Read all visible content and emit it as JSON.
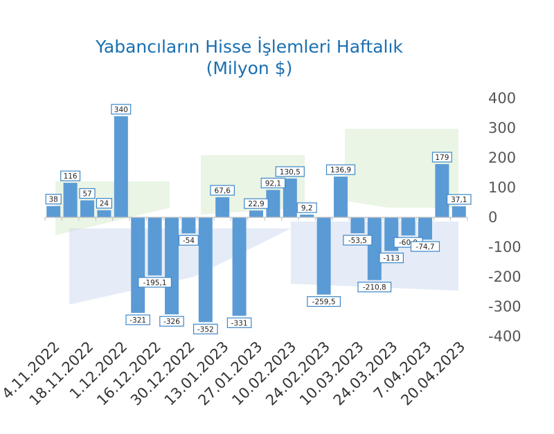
{
  "chart_data": {
    "type": "bar",
    "title_line1": "Yabancıların Hisse İşlemleri Haftalık",
    "title_line2": "(Milyon $)",
    "ylim": [
      -400,
      400
    ],
    "y_ticks": [
      "400",
      "300",
      "200",
      "100",
      "0",
      "-100",
      "-200",
      "-300",
      "-400"
    ],
    "y_tick_values": [
      400,
      300,
      200,
      100,
      0,
      -100,
      -200,
      -300,
      -400
    ],
    "x_tick_labels": [
      "4.11.2022",
      "18.11.2022",
      "1.12.2022",
      "16.12.2022",
      "30.12.2022",
      "13.01.2023",
      "27.01.2023",
      "10.02.2023",
      "24.02.2023",
      "10.03.2023",
      "24.03.2023",
      "7.04.2023",
      "20.04.2023"
    ],
    "values": [
      38,
      116,
      57,
      24,
      340,
      -321,
      -195.1,
      -326,
      -54,
      -352,
      67.6,
      -331,
      22.9,
      92.1,
      130.5,
      9.2,
      -259.5,
      136.9,
      -53.5,
      -210.8,
      -113,
      -60.9,
      -74.7,
      179,
      37.1
    ],
    "value_labels": [
      "38",
      "116",
      "57",
      "24",
      "340",
      "-321",
      "-195,1",
      "-326",
      "-54",
      "-352",
      "67,6",
      "-331",
      "22,9",
      "92,1",
      "130,5",
      "9,2",
      "-259,5",
      "136,9",
      "-53,5",
      "-210,8",
      "-113",
      "-60,9",
      "-74,7",
      "179",
      "37,1"
    ],
    "bar_color": "#5b9bd5",
    "label_border_color": "#3b86c8",
    "title_color": "#1a6fb0",
    "axis_color": "#bfbfbf",
    "grid": false,
    "legend": "none"
  }
}
